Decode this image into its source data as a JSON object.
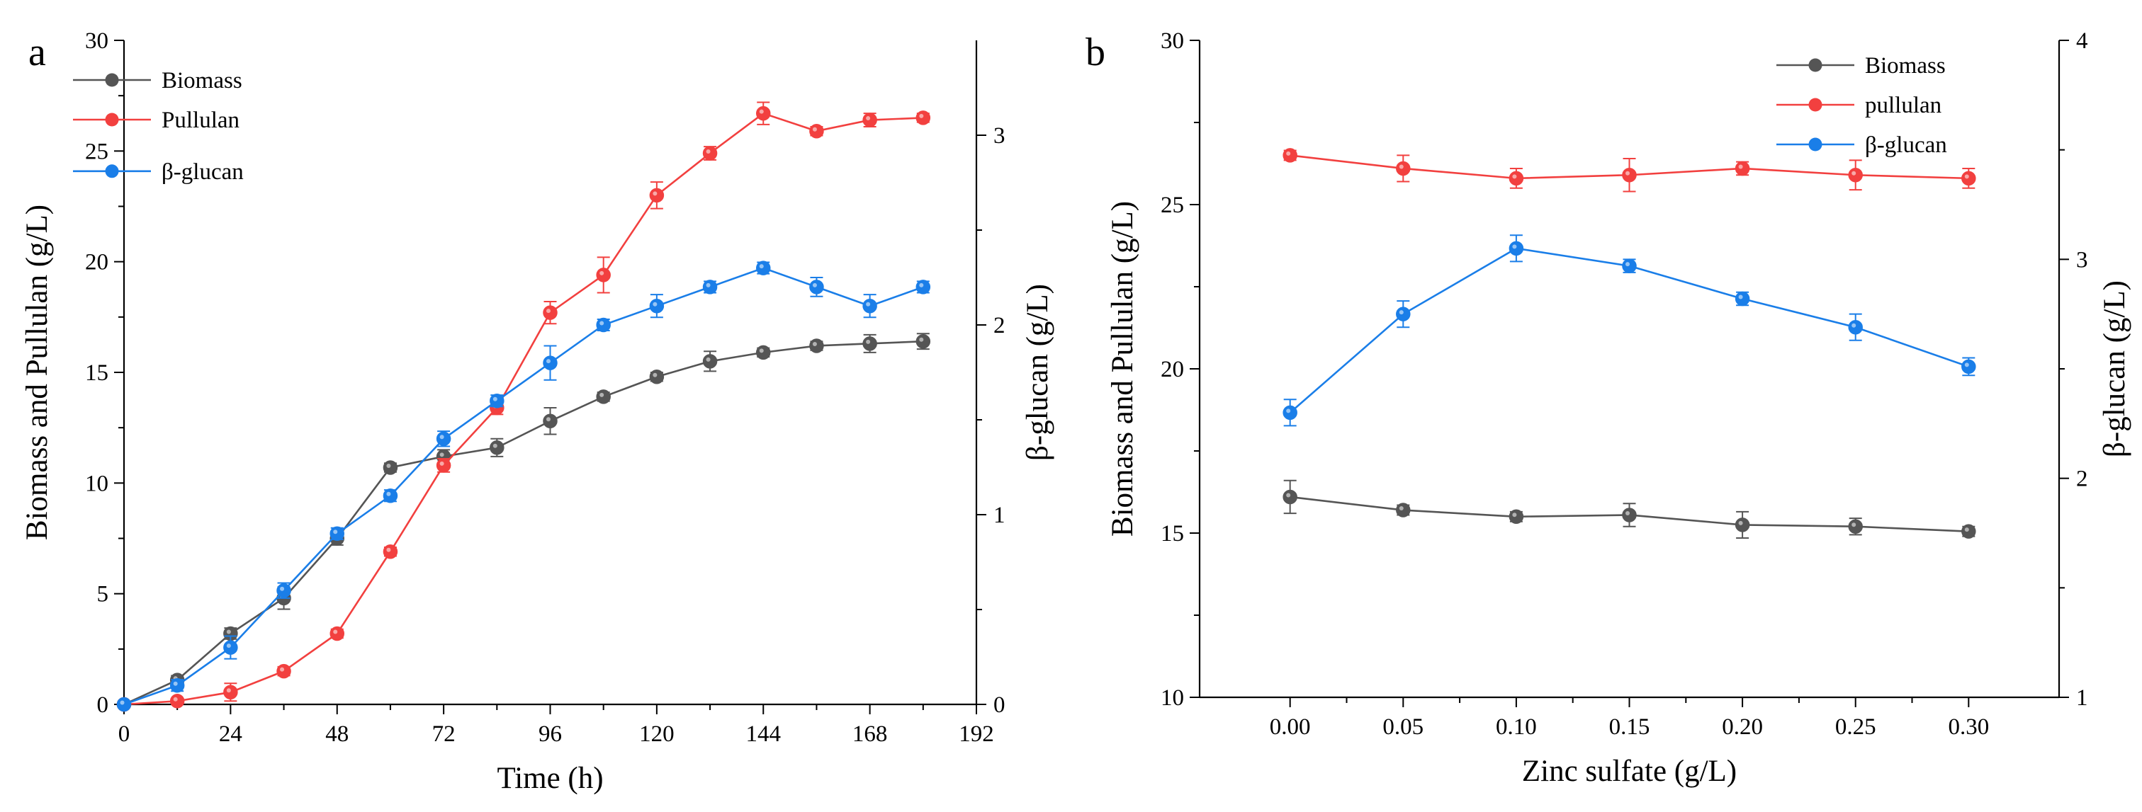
{
  "chart_data": [
    {
      "panel_label": "a",
      "type": "line",
      "xlabel": "Time (h)",
      "ylabel": "Biomass and Pullulan (g/L)",
      "y2label": "β-glucan (g/L)",
      "xlim": [
        0,
        192
      ],
      "ylim": [
        0,
        30
      ],
      "y2lim": [
        0,
        3.5
      ],
      "xticks": [
        "0",
        "24",
        "48",
        "72",
        "96",
        "120",
        "144",
        "168",
        "192"
      ],
      "yticks": [
        "0",
        "5",
        "10",
        "15",
        "20",
        "25",
        "30"
      ],
      "y2ticks": [
        "0",
        "1",
        "2",
        "3"
      ],
      "legend_position": "top-left",
      "grid": false,
      "series": [
        {
          "name": "Biomass",
          "axis": "left",
          "color": "#555555",
          "x": [
            0,
            12,
            24,
            36,
            48,
            60,
            72,
            84,
            96,
            108,
            120,
            132,
            144,
            156,
            168,
            180
          ],
          "y": [
            0,
            1.1,
            3.2,
            4.8,
            7.5,
            10.7,
            11.2,
            11.6,
            12.8,
            13.9,
            14.8,
            15.5,
            15.9,
            16.2,
            16.3,
            16.4
          ],
          "err": [
            0,
            0.2,
            0.25,
            0.5,
            0.3,
            0.2,
            0.3,
            0.4,
            0.6,
            0.2,
            0.2,
            0.45,
            0.2,
            0.2,
            0.4,
            0.35
          ]
        },
        {
          "name": "Pullulan",
          "axis": "left",
          "color": "#f2403f",
          "x": [
            0,
            12,
            24,
            36,
            48,
            60,
            72,
            84,
            96,
            108,
            120,
            132,
            144,
            156,
            168,
            180
          ],
          "y": [
            0,
            0.15,
            0.55,
            1.5,
            3.2,
            6.9,
            10.8,
            13.4,
            17.7,
            19.4,
            23.0,
            24.9,
            26.7,
            25.9,
            26.4,
            26.5
          ],
          "err": [
            0,
            0.1,
            0.4,
            0.2,
            0.2,
            0.2,
            0.3,
            0.3,
            0.5,
            0.8,
            0.6,
            0.3,
            0.5,
            0.2,
            0.3,
            0.2
          ]
        },
        {
          "name": "β-glucan",
          "axis": "right",
          "color": "#1a7ee8",
          "x": [
            0,
            12,
            24,
            36,
            48,
            60,
            72,
            84,
            96,
            108,
            120,
            132,
            144,
            156,
            168,
            180
          ],
          "y": [
            0,
            0.1,
            0.3,
            0.6,
            0.9,
            1.1,
            1.4,
            1.6,
            1.8,
            2.0,
            2.1,
            2.2,
            2.3,
            2.2,
            2.1,
            2.2
          ],
          "err": [
            0,
            0.03,
            0.06,
            0.04,
            0.03,
            0.03,
            0.04,
            0.03,
            0.09,
            0.03,
            0.06,
            0.03,
            0.03,
            0.05,
            0.06,
            0.03
          ]
        }
      ]
    },
    {
      "panel_label": "b",
      "type": "line",
      "xlabel": "Zinc sulfate (g/L)",
      "ylabel": "Biomass and Pullulan (g/L)",
      "y2label": "β-glucan (g/L)",
      "xlim": [
        -0.04,
        0.34
      ],
      "ylim": [
        10,
        30
      ],
      "y2lim": [
        1,
        4
      ],
      "xticks": [
        "0.00",
        "0.05",
        "0.10",
        "0.15",
        "0.20",
        "0.25",
        "0.30"
      ],
      "yticks": [
        "10",
        "15",
        "20",
        "25",
        "30"
      ],
      "y2ticks": [
        "1",
        "2",
        "3",
        "4"
      ],
      "legend_position": "top-right",
      "grid": false,
      "series": [
        {
          "name": "Biomass",
          "axis": "left",
          "color": "#555555",
          "x": [
            0.0,
            0.05,
            0.1,
            0.15,
            0.2,
            0.25,
            0.3
          ],
          "y": [
            16.1,
            15.7,
            15.5,
            15.55,
            15.25,
            15.2,
            15.05
          ],
          "err": [
            0.5,
            0.15,
            0.15,
            0.35,
            0.4,
            0.25,
            0.15
          ]
        },
        {
          "name": "pullulan",
          "axis": "left",
          "color": "#f2403f",
          "x": [
            0.0,
            0.05,
            0.1,
            0.15,
            0.2,
            0.25,
            0.3
          ],
          "y": [
            26.5,
            26.1,
            25.8,
            25.9,
            26.1,
            25.9,
            25.8
          ],
          "err": [
            0.15,
            0.4,
            0.3,
            0.5,
            0.2,
            0.45,
            0.3
          ]
        },
        {
          "name": "β-glucan",
          "axis": "right",
          "color": "#1a7ee8",
          "x": [
            0.0,
            0.05,
            0.1,
            0.15,
            0.2,
            0.25,
            0.3
          ],
          "y": [
            2.3,
            2.75,
            3.05,
            2.97,
            2.82,
            2.69,
            2.51
          ],
          "err": [
            0.06,
            0.06,
            0.06,
            0.03,
            0.03,
            0.06,
            0.04
          ]
        }
      ]
    }
  ]
}
